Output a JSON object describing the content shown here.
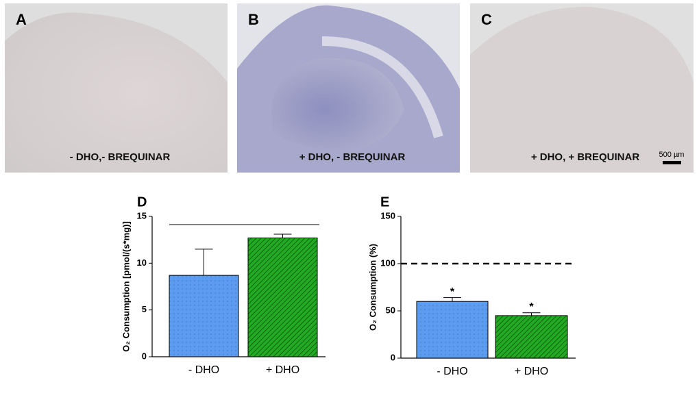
{
  "panels": [
    {
      "letter": "A",
      "label": "- DHO,- BREQUINAR"
    },
    {
      "letter": "B",
      "label": "+ DHO, - BREQUINAR"
    },
    {
      "letter": "C",
      "label": "+ DHO, + BREQUINAR"
    }
  ],
  "scale_bar": "500 µm",
  "chart_data": [
    {
      "type": "bar",
      "panel": "D",
      "ylabel": "O₂ Consumption  [pmol/(s*mg)]",
      "categories": [
        "- DHO",
        "+ DHO"
      ],
      "values": [
        8.7,
        12.7
      ],
      "errors": [
        2.8,
        0.4
      ],
      "colors": [
        "#5b9cf0",
        "#22aa22"
      ],
      "ylim": [
        0,
        15
      ],
      "yticks": [
        0,
        5,
        10,
        15
      ]
    },
    {
      "type": "bar",
      "panel": "E",
      "ylabel": "O₂ Consumption (%)",
      "categories": [
        "- DHO",
        "+ DHO"
      ],
      "values": [
        60,
        45
      ],
      "errors": [
        4,
        3
      ],
      "colors": [
        "#5b9cf0",
        "#22aa22"
      ],
      "ylim": [
        0,
        150
      ],
      "yticks": [
        0,
        50,
        100,
        150
      ],
      "reference_line": 100,
      "annotations": [
        "*",
        "*"
      ]
    }
  ]
}
